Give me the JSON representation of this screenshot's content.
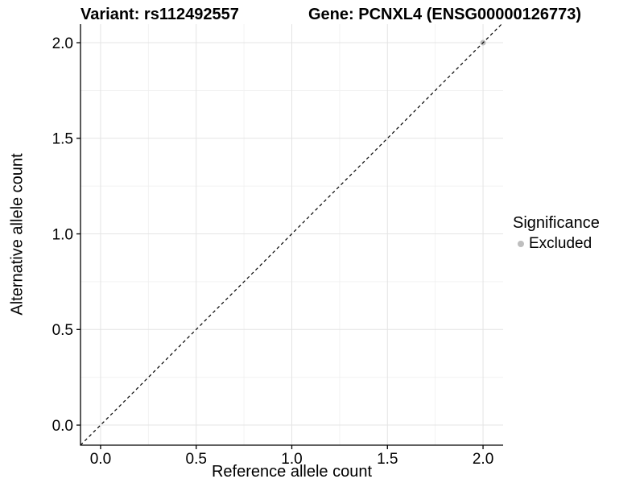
{
  "titles": {
    "variant": "Variant: rs112492557",
    "gene": "Gene: PCNXL4 (ENSG00000126773)"
  },
  "chart_data": {
    "type": "scatter",
    "title_left": "Variant: rs112492557",
    "title_right": "Gene: PCNXL4 (ENSG00000126773)",
    "xlabel": "Reference allele count",
    "ylabel": "Alternative allele count",
    "xlim": [
      -0.105,
      2.105
    ],
    "ylim": [
      -0.105,
      2.097
    ],
    "xticks": {
      "values": [
        0,
        0.5,
        1,
        1.5,
        2
      ],
      "labels": [
        "0.0",
        "0.5",
        "1.0",
        "1.5",
        "2.0"
      ]
    },
    "yticks": {
      "values": [
        0,
        0.5,
        1,
        1.5,
        2
      ],
      "labels": [
        "0.0",
        "0.5",
        "1.0",
        "1.5",
        "2.0"
      ]
    },
    "minor_ticks": [
      0.25,
      0.75,
      1.25,
      1.75
    ],
    "grid": {
      "on": true,
      "major_color": "#e4e4e4",
      "minor_color": "#f0f0f0"
    },
    "axis_color": "#000000",
    "points": [
      {
        "x": 2,
        "y": 2,
        "series": "Excluded",
        "color": "#bebebe"
      }
    ],
    "identity_line": {
      "slope": 1,
      "intercept": 0,
      "style": "dashed",
      "color": "#000000"
    },
    "legend": {
      "position": "right",
      "title": "Significance",
      "items": [
        {
          "label": "Excluded",
          "color": "#bebebe"
        }
      ]
    }
  }
}
